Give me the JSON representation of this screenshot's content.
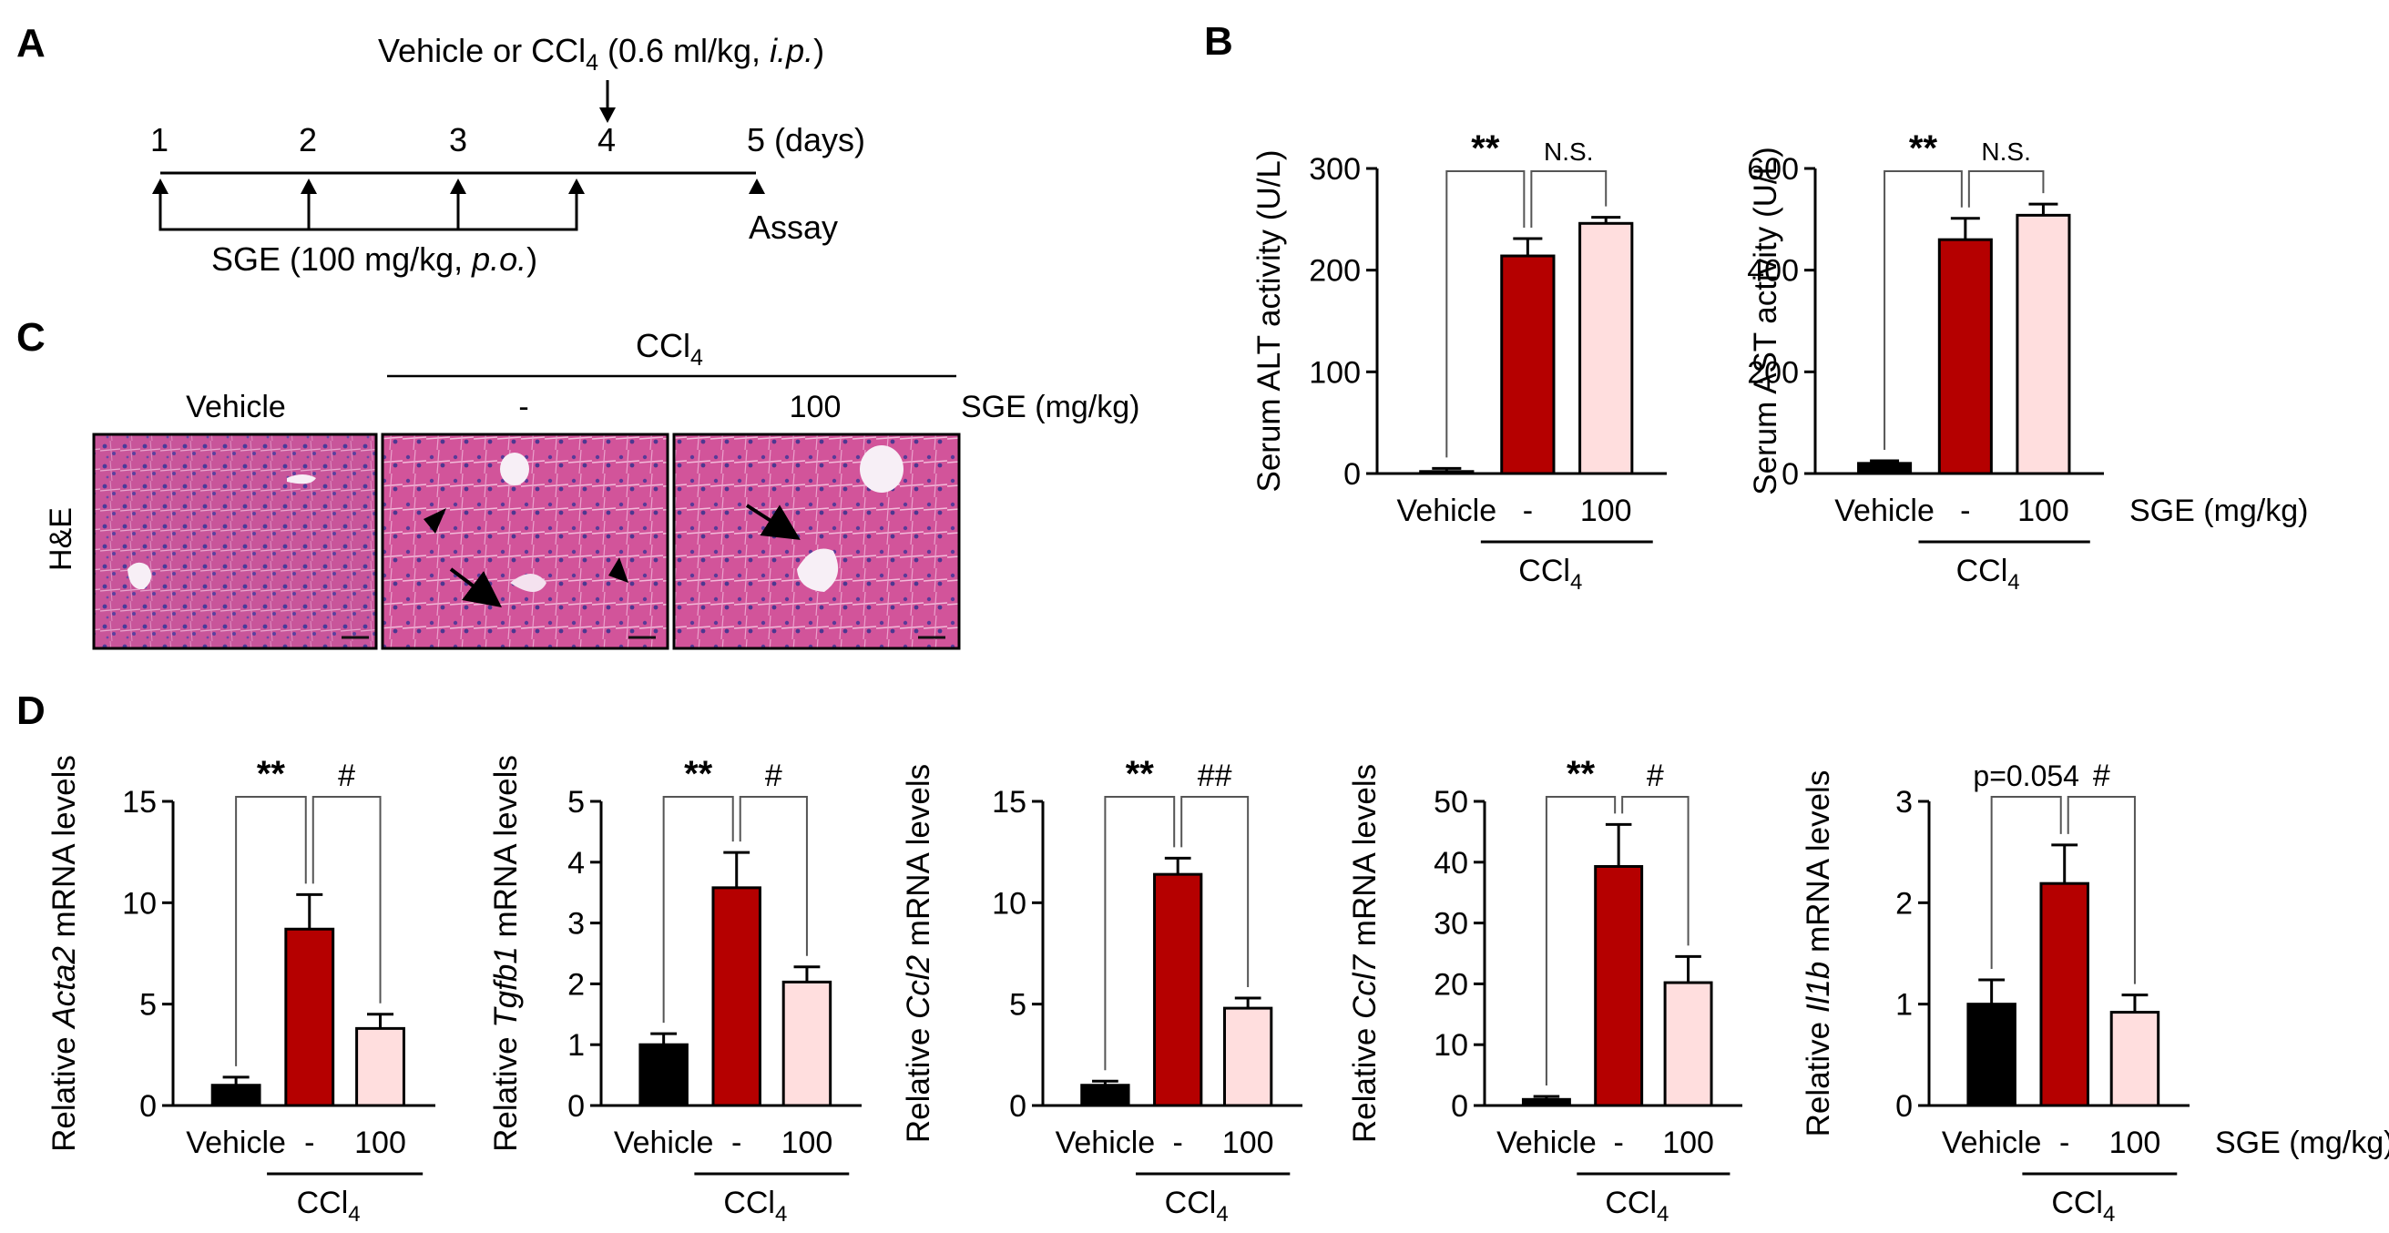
{
  "panels": {
    "a": {
      "letter": "A",
      "treatment_label": {
        "main": "Vehicle or CCl",
        "sub": "4",
        "dose": " (0.6 ml/kg, ",
        "route": "i.p.",
        "close": ")"
      },
      "days": [
        "1",
        "2",
        "3",
        "4",
        "5"
      ],
      "days_unit": "(days)",
      "assay_label": "Assay",
      "sge_label": {
        "main": "SGE (100 mg/kg, ",
        "route": "p.o.",
        "close": ")"
      }
    },
    "b": {
      "letter": "B"
    },
    "c": {
      "letter": "C",
      "group_label": {
        "main": "CCl",
        "sub": "4"
      },
      "col_labels": [
        "Vehicle",
        "-",
        "100"
      ],
      "sge_label": "SGE (mg/kg)",
      "row_label": "H&E"
    },
    "d": {
      "letter": "D"
    }
  },
  "common": {
    "x_labels": [
      "Vehicle",
      "-",
      "100"
    ],
    "ccl4_label": {
      "main": "CCl",
      "sub": "4"
    },
    "sge_label": "SGE (mg/kg)",
    "colors": {
      "vehicle": "#000000",
      "ccl4": "#b50000",
      "ccl4_sge": "#ffdede"
    }
  },
  "chart_data": [
    {
      "id": "alt",
      "type": "bar",
      "ylabel": "Serum ALT activity (U/L)",
      "ylim": [
        0,
        300
      ],
      "yticks": [
        0,
        100,
        200,
        300
      ],
      "categories": [
        "Vehicle",
        "-",
        "100"
      ],
      "values": [
        2,
        214,
        246
      ],
      "errors": [
        3,
        17,
        6
      ],
      "annotations": [
        {
          "pair": "Vehicle vs -",
          "label": "**"
        },
        {
          "pair": "- vs 100",
          "label": "N.S."
        }
      ]
    },
    {
      "id": "ast",
      "type": "bar",
      "ylabel": "Serum AST activity (U/L)",
      "ylim": [
        0,
        600
      ],
      "yticks": [
        0,
        200,
        400,
        600
      ],
      "categories": [
        "Vehicle",
        "-",
        "100"
      ],
      "values": [
        20,
        460,
        508
      ],
      "errors": [
        5,
        42,
        22
      ],
      "annotations": [
        {
          "pair": "Vehicle vs -",
          "label": "**"
        },
        {
          "pair": "- vs 100",
          "label": "N.S."
        }
      ]
    },
    {
      "id": "acta2",
      "type": "bar",
      "ylabel": {
        "pre": "Relative ",
        "gene": "Acta2",
        "post": " mRNA levels"
      },
      "ylim": [
        0,
        15
      ],
      "yticks": [
        0,
        5,
        10,
        15
      ],
      "categories": [
        "Vehicle",
        "-",
        "100"
      ],
      "values": [
        1.0,
        8.7,
        3.8
      ],
      "errors": [
        0.4,
        1.7,
        0.7
      ],
      "annotations": [
        {
          "pair": "Vehicle vs -",
          "label": "**"
        },
        {
          "pair": "- vs 100",
          "label": "#"
        }
      ]
    },
    {
      "id": "tgfb1",
      "type": "bar",
      "ylabel": {
        "pre": "Relative ",
        "gene": "Tgfb1",
        "post": " mRNA levels"
      },
      "ylim": [
        0,
        5
      ],
      "yticks": [
        0,
        1,
        2,
        3,
        4,
        5
      ],
      "categories": [
        "Vehicle",
        "-",
        "100"
      ],
      "values": [
        1.0,
        3.58,
        2.03
      ],
      "errors": [
        0.18,
        0.58,
        0.25
      ],
      "annotations": [
        {
          "pair": "Vehicle vs -",
          "label": "**"
        },
        {
          "pair": "- vs 100",
          "label": "#"
        }
      ]
    },
    {
      "id": "ccl2",
      "type": "bar",
      "ylabel": {
        "pre": "Relative ",
        "gene": "Ccl2",
        "post": " mRNA levels"
      },
      "ylim": [
        0,
        15
      ],
      "yticks": [
        0,
        5,
        10,
        15
      ],
      "categories": [
        "Vehicle",
        "-",
        "100"
      ],
      "values": [
        1.0,
        11.4,
        4.8
      ],
      "errors": [
        0.2,
        0.8,
        0.5
      ],
      "annotations": [
        {
          "pair": "Vehicle vs -",
          "label": "**"
        },
        {
          "pair": "- vs 100",
          "label": "##"
        }
      ]
    },
    {
      "id": "ccl7",
      "type": "bar",
      "ylabel": {
        "pre": "Relative ",
        "gene": "Ccl7",
        "post": " mRNA levels"
      },
      "ylim": [
        0,
        50
      ],
      "yticks": [
        0,
        10,
        20,
        30,
        40,
        50
      ],
      "categories": [
        "Vehicle",
        "-",
        "100"
      ],
      "values": [
        1.0,
        39.3,
        20.2
      ],
      "errors": [
        0.5,
        6.9,
        4.3
      ],
      "annotations": [
        {
          "pair": "Vehicle vs -",
          "label": "**"
        },
        {
          "pair": "- vs 100",
          "label": "#"
        }
      ]
    },
    {
      "id": "il1b",
      "type": "bar",
      "ylabel": {
        "pre": "Relative ",
        "gene": "Il1b",
        "post": " mRNA levels"
      },
      "ylim": [
        0,
        3
      ],
      "yticks": [
        0,
        1,
        2,
        3
      ],
      "categories": [
        "Vehicle",
        "-",
        "100"
      ],
      "values": [
        1.0,
        2.19,
        0.92
      ],
      "errors": [
        0.24,
        0.38,
        0.17
      ],
      "annotations": [
        {
          "pair": "Vehicle vs -",
          "label": "p=0.054"
        },
        {
          "pair": "- vs 100",
          "label": "#"
        }
      ]
    }
  ]
}
